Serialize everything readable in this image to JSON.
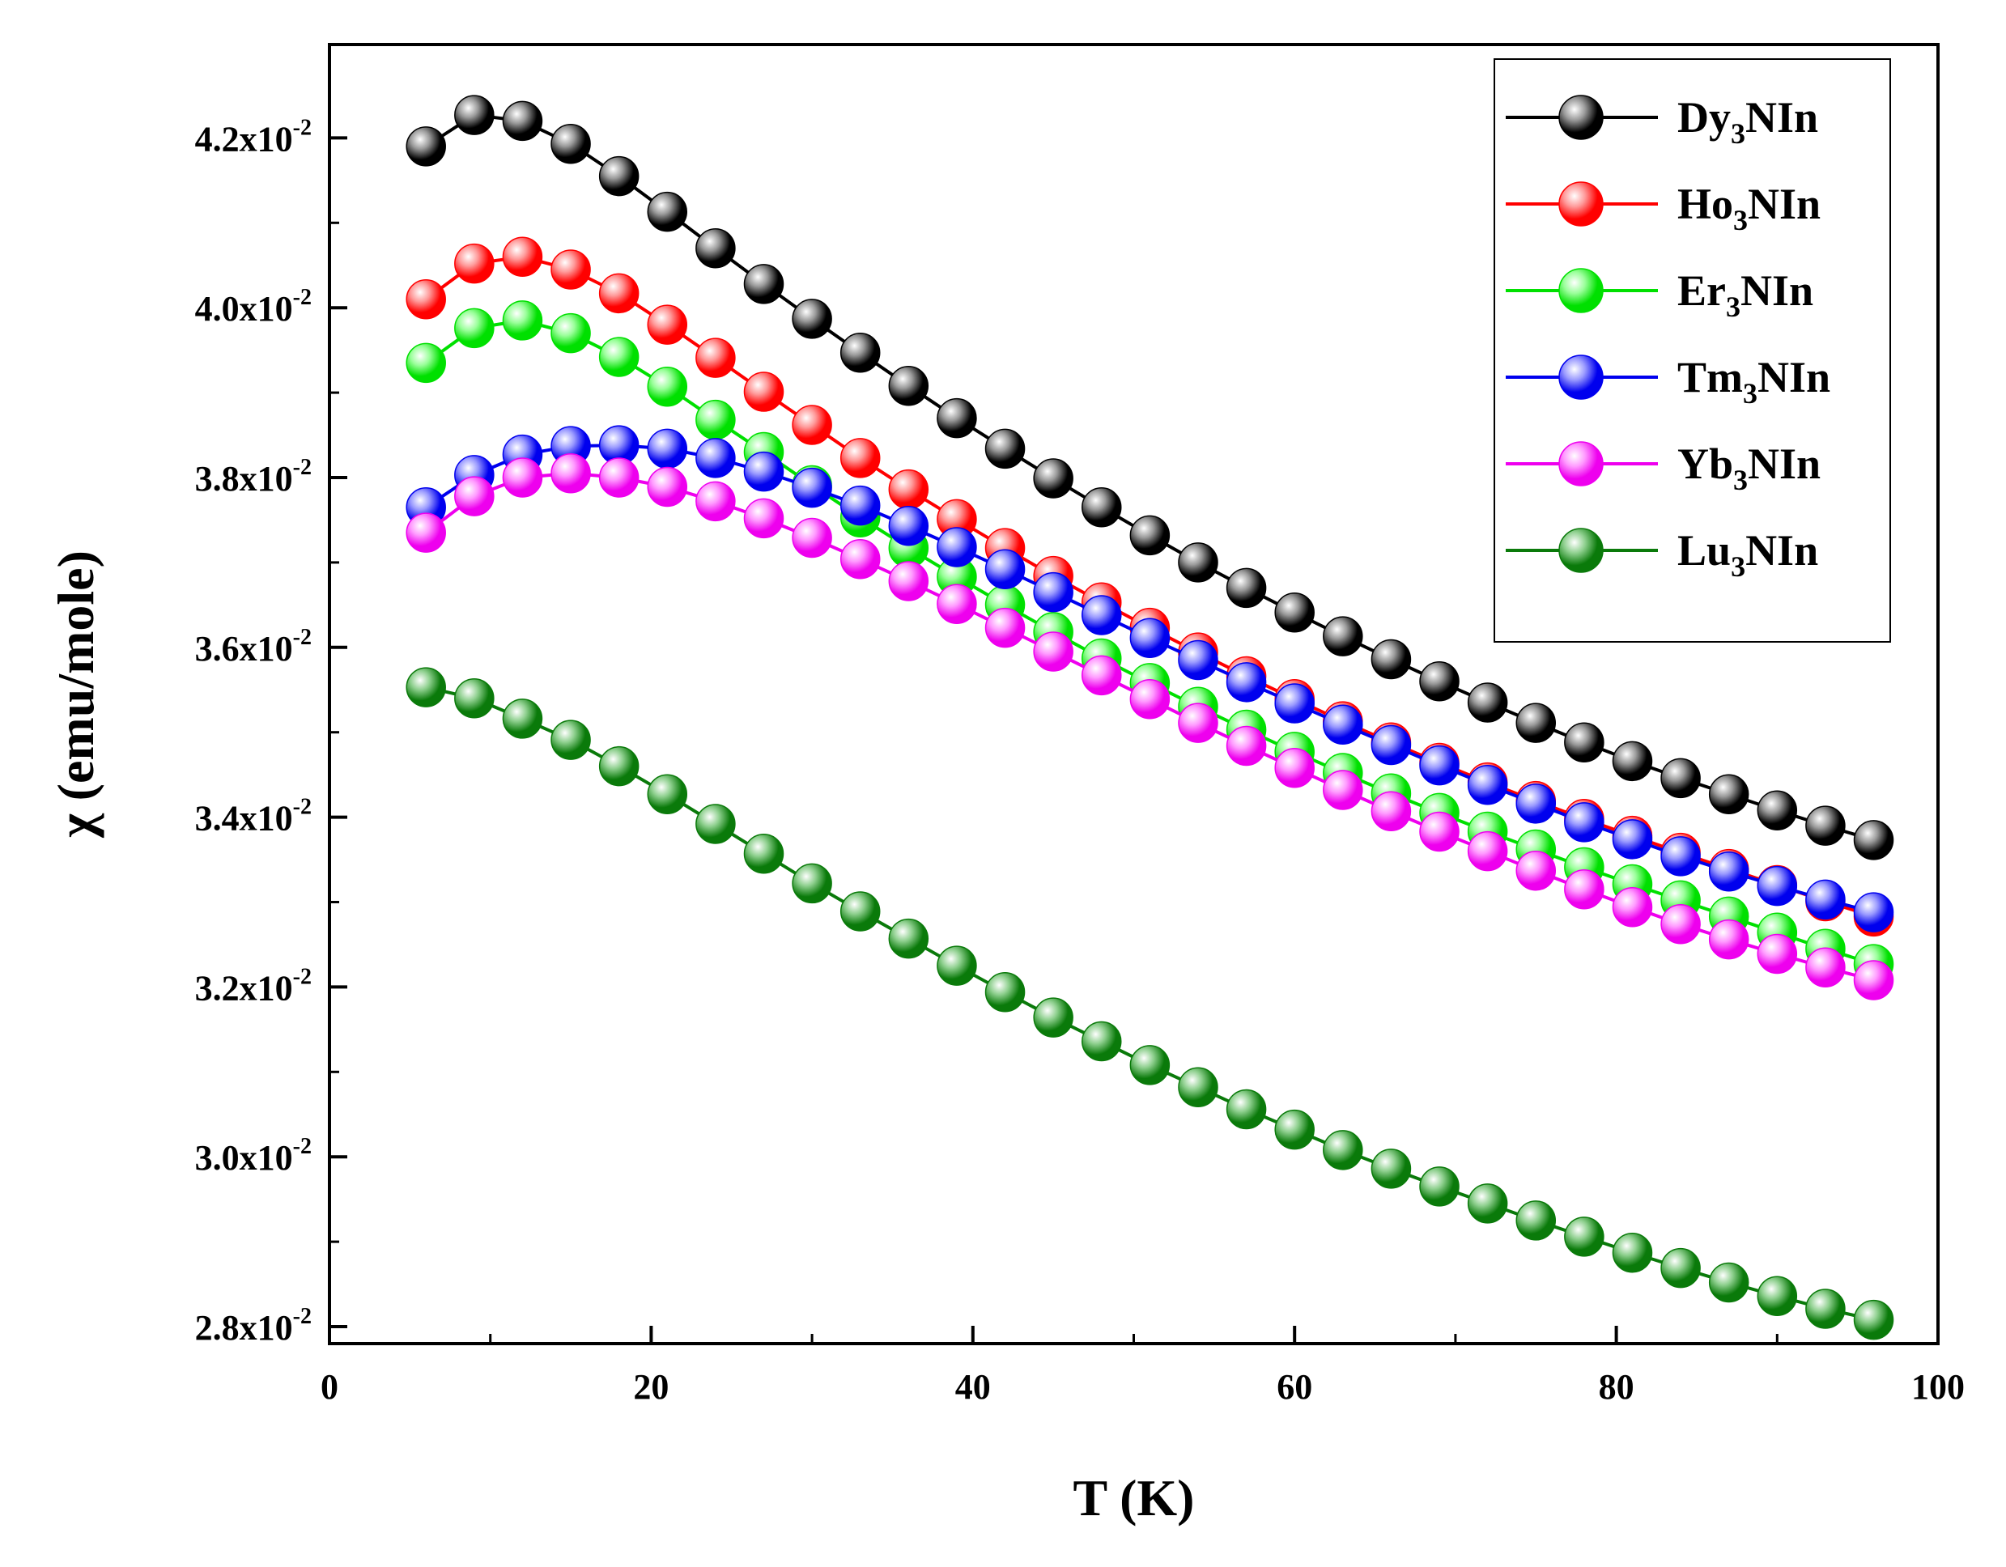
{
  "chart_data": {
    "type": "line",
    "xlabel": "T (K)",
    "ylabel": "χ (emu/mole)",
    "xlim": [
      0,
      100
    ],
    "ylim": [
      0.0278,
      0.0431
    ],
    "xticks": [
      0,
      20,
      40,
      60,
      80,
      100
    ],
    "yticks": [
      {
        "value": 0.028,
        "mantissa": "2.8x10",
        "exponent": "-2"
      },
      {
        "value": 0.03,
        "mantissa": "3.0x10",
        "exponent": "-2"
      },
      {
        "value": 0.032,
        "mantissa": "3.2x10",
        "exponent": "-2"
      },
      {
        "value": 0.034,
        "mantissa": "3.4x10",
        "exponent": "-2"
      },
      {
        "value": 0.036,
        "mantissa": "3.6x10",
        "exponent": "-2"
      },
      {
        "value": 0.038,
        "mantissa": "3.8x10",
        "exponent": "-2"
      },
      {
        "value": 0.04,
        "mantissa": "4.0x10",
        "exponent": "-2"
      },
      {
        "value": 0.042,
        "mantissa": "4.2x10",
        "exponent": "-2"
      }
    ],
    "legend_position": "top-right",
    "x": [
      6,
      9,
      12,
      15,
      18,
      21,
      24,
      27,
      30,
      33,
      36,
      39,
      42,
      45,
      48,
      51,
      54,
      57,
      60,
      63,
      66,
      69,
      72,
      75,
      78,
      81,
      84,
      87,
      90,
      93,
      96
    ],
    "series": [
      {
        "name": "Dy3NIn",
        "prefix": "Dy",
        "sub": "3",
        "suffix": "NIn",
        "color": "#000000",
        "highlight": "#9a9a9a",
        "values": [
          0.0419,
          0.04227,
          0.0422,
          0.04193,
          0.04155,
          0.04113,
          0.0407,
          0.04028,
          0.03987,
          0.03947,
          0.03908,
          0.0387,
          0.03834,
          0.03799,
          0.03765,
          0.03732,
          0.037,
          0.0367,
          0.03641,
          0.03613,
          0.03586,
          0.0356,
          0.03535,
          0.03511,
          0.03488,
          0.03466,
          0.03446,
          0.03427,
          0.03408,
          0.0339,
          0.03373
        ]
      },
      {
        "name": "Ho3NIn",
        "prefix": "Ho",
        "sub": "3",
        "suffix": "NIn",
        "color": "#ff0000",
        "highlight": "#ff9a9a",
        "values": [
          0.0401,
          0.04052,
          0.0406,
          0.04045,
          0.04017,
          0.0398,
          0.03941,
          0.03901,
          0.03862,
          0.03823,
          0.03786,
          0.03751,
          0.03717,
          0.03684,
          0.03653,
          0.03623,
          0.03594,
          0.03566,
          0.03539,
          0.03513,
          0.03488,
          0.03464,
          0.03441,
          0.03419,
          0.03398,
          0.03378,
          0.03358,
          0.03339,
          0.0332,
          0.03301,
          0.03283
        ]
      },
      {
        "name": "Er3NIn",
        "prefix": "Er",
        "sub": "3",
        "suffix": "NIn",
        "color": "#00e000",
        "highlight": "#9aff9a",
        "values": [
          0.03935,
          0.03976,
          0.03985,
          0.0397,
          0.03942,
          0.03907,
          0.03868,
          0.0383,
          0.03791,
          0.03753,
          0.03717,
          0.03683,
          0.0365,
          0.03618,
          0.03587,
          0.03558,
          0.0353,
          0.03503,
          0.03477,
          0.03452,
          0.03428,
          0.03405,
          0.03383,
          0.03362,
          0.03341,
          0.03321,
          0.03302,
          0.03283,
          0.03264,
          0.03245,
          0.03227
        ]
      },
      {
        "name": "Tm3NIn",
        "prefix": "Tm",
        "sub": "3",
        "suffix": "NIn",
        "color": "#0000ee",
        "highlight": "#9a9aff",
        "values": [
          0.03765,
          0.03803,
          0.03827,
          0.03837,
          0.03838,
          0.03834,
          0.03823,
          0.03807,
          0.03788,
          0.03767,
          0.03743,
          0.03718,
          0.03692,
          0.03665,
          0.03638,
          0.03611,
          0.03585,
          0.03559,
          0.03534,
          0.03509,
          0.03485,
          0.03461,
          0.03438,
          0.03416,
          0.03394,
          0.03374,
          0.03354,
          0.03336,
          0.03319,
          0.03303,
          0.03288
        ]
      },
      {
        "name": "Yb3NIn",
        "prefix": "Yb",
        "sub": "3",
        "suffix": "NIn",
        "color": "#ee00ee",
        "highlight": "#ff9aff",
        "values": [
          0.03735,
          0.03778,
          0.038,
          0.03805,
          0.038,
          0.03789,
          0.03772,
          0.03752,
          0.03729,
          0.03704,
          0.03678,
          0.03651,
          0.03623,
          0.03595,
          0.03567,
          0.03539,
          0.03511,
          0.03484,
          0.03458,
          0.03432,
          0.03407,
          0.03383,
          0.0336,
          0.03337,
          0.03315,
          0.03294,
          0.03274,
          0.03256,
          0.03239,
          0.03223,
          0.03208
        ]
      },
      {
        "name": "Lu3NIn",
        "prefix": "Lu",
        "sub": "3",
        "suffix": "NIn",
        "color": "#0a7a0a",
        "highlight": "#8fd08f",
        "values": [
          0.03553,
          0.0354,
          0.03516,
          0.03491,
          0.0346,
          0.03427,
          0.03392,
          0.03357,
          0.03322,
          0.03289,
          0.03257,
          0.03225,
          0.03194,
          0.03164,
          0.03136,
          0.03108,
          0.03082,
          0.03056,
          0.03032,
          0.03008,
          0.02986,
          0.02965,
          0.02945,
          0.02925,
          0.02906,
          0.02887,
          0.02869,
          0.02852,
          0.02836,
          0.02821,
          0.02808
        ]
      }
    ]
  }
}
